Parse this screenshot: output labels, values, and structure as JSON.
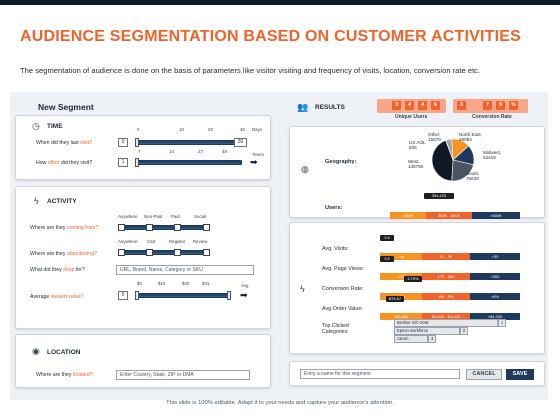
{
  "title": "AUDIENCE SEGMENTATION BASED ON CUSTOMER ACTIVITIES",
  "subtitle": "The segmentation of audience is done on the basis of parameters like visitor visiting and frequency of visits, location, conversion rate etc.",
  "footer": "This slide is 100% editable. Adapt it to your needs and capture your audience's attention.",
  "colors": {
    "accent": "#f0632a",
    "navy": "#1e3a5f",
    "lightOrange": "#f9a58a"
  },
  "new_segment": {
    "heading": "New Segment",
    "time": {
      "heading": "TIME",
      "icon": "clock-icon",
      "ticks": [
        "0",
        "10",
        "20",
        "30"
      ],
      "ticks2": [
        "7",
        "14",
        "27",
        "48"
      ],
      "last_visit_label": "When did they last ",
      "last_visit_hl": "visit?",
      "last_visit_min": "0",
      "last_visit_max": "30",
      "last_visit_unit": "Days",
      "often_label_a": "How ",
      "often_hl": "often",
      "often_label_b": " did they visit?",
      "often_min": "1",
      "often_unit": "Times"
    },
    "activity": {
      "heading": "ACTIVITY",
      "icon": "lightning-icon",
      "coming_cols": [
        "Anywhere",
        "Non-Paid",
        "Paid",
        "Social"
      ],
      "coming_label_a": "Where are they ",
      "coming_hl": "coming from?",
      "abandon_cols": [
        "Anywhere",
        "Cart",
        "Register",
        "Review"
      ],
      "abandon_label_a": "Where are they ",
      "abandon_hl": "abandoning?",
      "shop_label_a": "What did they ",
      "shop_hl": "shop",
      "shop_label_b": " for?",
      "shop_placeholder": "URL, Brand, Name, Category or SKU",
      "value_ticks": [
        "$0",
        "$10",
        "$20",
        "$41"
      ],
      "value_label_a": "Average ",
      "value_hl": "viewed value?",
      "value_min": "0",
      "value_unit": "Avg"
    },
    "location": {
      "heading": "LOCATION",
      "icon": "pin-icon",
      "label_a": "Where are they ",
      "label_hl": "located?",
      "placeholder": "Enter Country, State, ZIP or DMA"
    }
  },
  "results": {
    "heading": "RESULTS",
    "icon": "users-icon",
    "unique_digits": [
      "3",
      "4",
      "4",
      "6"
    ],
    "unique_label": "Unique Users",
    "conversion_digits": [
      "3",
      "7",
      "9",
      "%"
    ],
    "conversion_label": "Conversion Rate",
    "geo_label": "Geography:",
    "geo_icon": "globe-icon",
    "pie": [
      {
        "name": "Other",
        "value": "15670"
      },
      {
        "name": "North East",
        "value": "48094"
      },
      {
        "name": "Midwest",
        "value": "52418"
      },
      {
        "name": "South",
        "value": "75639"
      },
      {
        "name": "West",
        "value": "146760"
      },
      {
        "name": "US AOL",
        "value": "506"
      }
    ],
    "users_label": "Users:",
    "users_chip": "354,423",
    "users_segs": [
      "<300K",
      "300K - 600K",
      ">600K"
    ],
    "metrics_icon": "lightning-icon",
    "avg_visits_label": "Avg. Visits:",
    "avg_visits_chip": "3.4",
    "avg_visits_segs": [
      "<14",
      "14 - 30",
      ">30"
    ],
    "page_views_label": "Avg. Page Views:",
    "page_views_chip": "3.5",
    "page_views_segs": [
      "<70",
      "170 - 300",
      ">300"
    ],
    "conv_label": "Conversion Rate:",
    "conv_chip": "3.79%",
    "conv_segs": [
      "<4%",
      "4% - 8%",
      ">8%"
    ],
    "order_label": "Avg Order Value:",
    "order_chip": "$74.67",
    "order_segs": [
      "<$3,400",
      "$3,400 - $4,000",
      ">$4,000"
    ],
    "clicked_label_a": "Top Clicked",
    "clicked_label_b": "Categories:",
    "categories": [
      {
        "name": "Brother mfc-206c",
        "count": "1"
      },
      {
        "name": "Epson workforce",
        "count": "2"
      },
      {
        "name": "canon",
        "count": "3"
      }
    ],
    "name_placeholder": "Entry a name for this segment",
    "cancel_label": "CANCEL",
    "save_label": "SAVE"
  }
}
